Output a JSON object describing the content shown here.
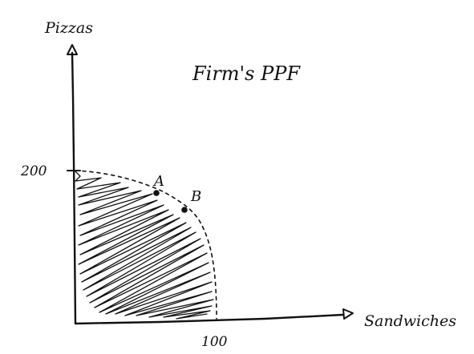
{
  "diagram": {
    "title": "Firm's PPF",
    "y_axis_label": "Pizzas",
    "x_axis_label": "Sandwiches",
    "y_intercept_label": "200",
    "x_intercept_label": "100",
    "points": [
      {
        "label": "A"
      },
      {
        "label": "B"
      }
    ],
    "ink_color": "#111111",
    "background_color": "#ffffff"
  }
}
